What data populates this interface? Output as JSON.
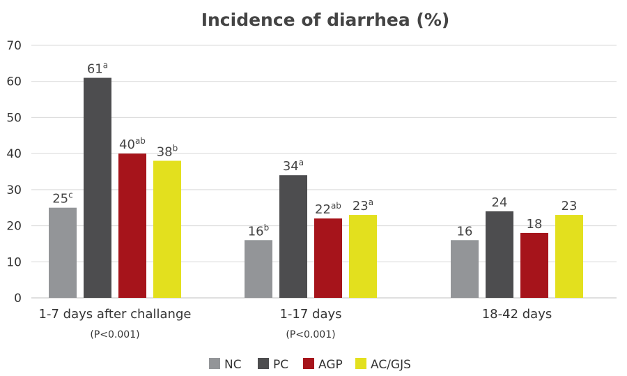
{
  "chart_data": {
    "type": "bar",
    "title": "Incidence of diarrhea (%)",
    "xlabel": "",
    "ylabel": "",
    "ylim": [
      0,
      70
    ],
    "yticks": [
      0,
      10,
      20,
      30,
      40,
      50,
      60,
      70
    ],
    "grid": true,
    "legend_position": "bottom",
    "categories": [
      "1-7 days after challange",
      "1-17 days",
      "18-42 days"
    ],
    "category_notes": [
      "(P<0.001)",
      "(P<0.001)",
      ""
    ],
    "series": [
      {
        "name": "NC",
        "color": "#939598",
        "values": [
          25,
          16,
          16
        ],
        "letters": [
          "c",
          "b",
          ""
        ]
      },
      {
        "name": "PC",
        "color": "#4d4d4f",
        "values": [
          61,
          34,
          24
        ],
        "letters": [
          "a",
          "a",
          ""
        ]
      },
      {
        "name": "AGP",
        "color": "#a6141b",
        "values": [
          40,
          22,
          18
        ],
        "letters": [
          "ab",
          "ab",
          ""
        ]
      },
      {
        "name": "AC/GJS",
        "color": "#e3e01e",
        "values": [
          38,
          23,
          23
        ],
        "letters": [
          "b",
          "a",
          ""
        ]
      }
    ]
  }
}
